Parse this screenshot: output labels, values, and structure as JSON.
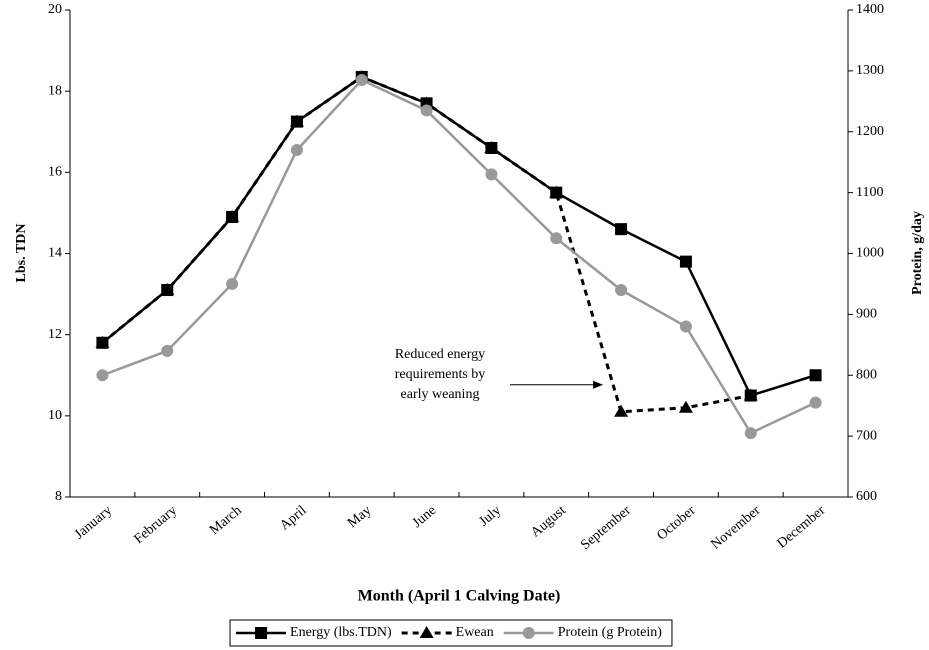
{
  "chart_data": {
    "type": "line",
    "categories": [
      "January",
      "February",
      "March",
      "April",
      "May",
      "June",
      "July",
      "August",
      "September",
      "October",
      "November",
      "December"
    ],
    "xlabel": "Month (April 1 Calving Date)",
    "ylabel": "Lbs. TDN",
    "y2label": "Protein, g/day",
    "ylim": [
      8,
      20
    ],
    "yticks": [
      8,
      10,
      12,
      14,
      16,
      18,
      20
    ],
    "y2lim": [
      600,
      1400
    ],
    "y2ticks": [
      600,
      700,
      800,
      900,
      1000,
      1100,
      1200,
      1300,
      1400
    ],
    "series": [
      {
        "name": "Energy (lbs.TDN)",
        "color": "#000000",
        "marker": "square",
        "dashed": false,
        "values": [
          11.8,
          13.1,
          14.9,
          17.25,
          18.35,
          17.7,
          16.6,
          15.5,
          14.6,
          13.8,
          10.5,
          11.0
        ]
      },
      {
        "name": "Ewean",
        "color": "#000000",
        "marker": "triangle",
        "dashed": true,
        "values": [
          11.8,
          13.1,
          14.9,
          17.25,
          18.35,
          17.7,
          16.6,
          15.5,
          10.1,
          10.2,
          10.5,
          null
        ]
      },
      {
        "name": "Protein (g Protein)",
        "color": "#999999",
        "marker": "circle",
        "dashed": false,
        "axis": "y2",
        "values": [
          800,
          840,
          950,
          1170,
          1285,
          1235,
          1130,
          1025,
          940,
          880,
          705,
          755
        ]
      }
    ],
    "annotation": {
      "lines": [
        "Reduced energy",
        "requirements by",
        "early weaning"
      ],
      "target_index": 8,
      "series_index": 1
    }
  }
}
